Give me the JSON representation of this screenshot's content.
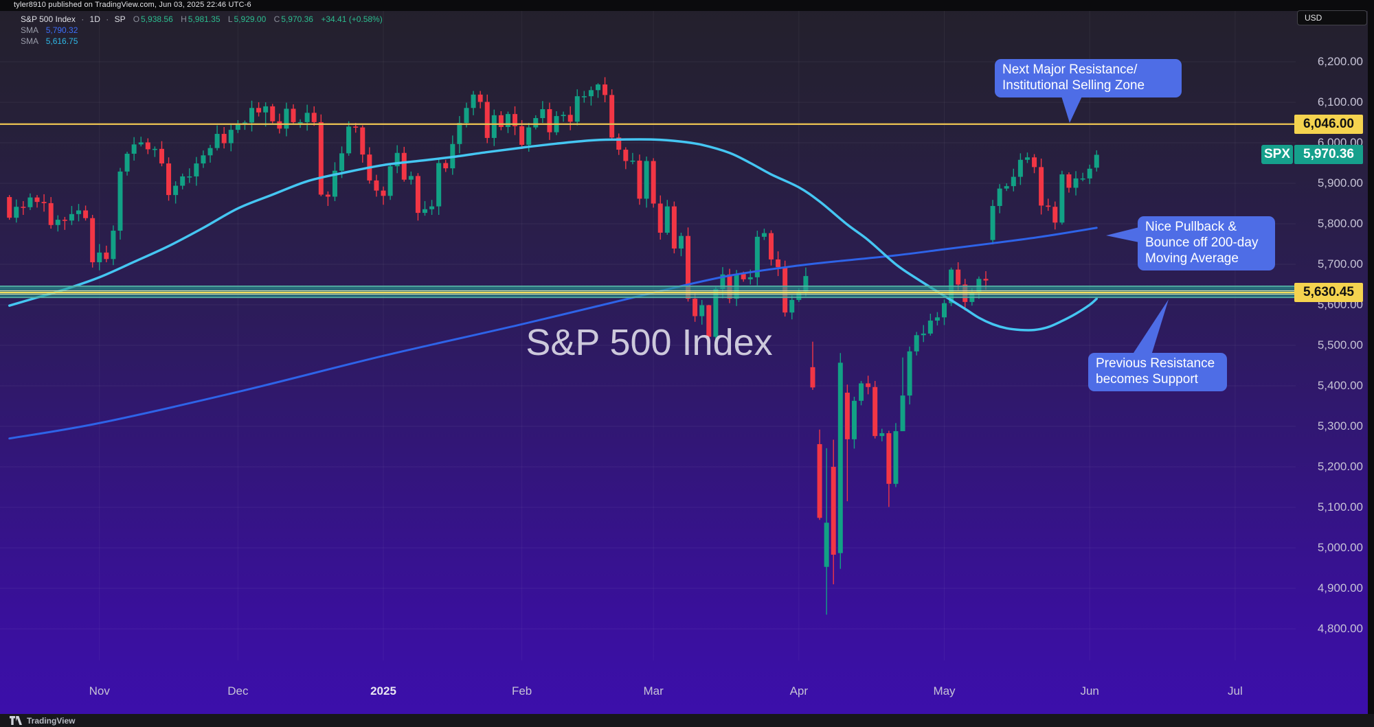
{
  "publish_bar": {
    "text": "tyler8910 published on TradingView.com, Jun 03, 2025 22:46 UTC-6"
  },
  "legend": {
    "symbol": "S&P 500 Index",
    "sep": "·",
    "interval": "1D",
    "exchange": "SP",
    "o_label": "O",
    "o": "5,938.56",
    "h_label": "H",
    "h": "5,981.35",
    "l_label": "L",
    "l": "5,929.00",
    "c_label": "C",
    "c": "5,970.36",
    "change": "+34.41 (+0.58%)",
    "sma1_label": "SMA",
    "sma1_value": "5,790.32",
    "sma2_label": "SMA",
    "sma2_value": "5,616.75"
  },
  "watermark": "S&P 500 Index",
  "currency_button": "USD",
  "footer": {
    "brand": "TradingView"
  },
  "price_chips": {
    "resistance_label": "6,046.00",
    "resistance_price": 6046.0,
    "support_label": "5,630.45",
    "support_price": 5630.45,
    "symbol_flag": "SPX",
    "last_label": "5,970.36",
    "last_price": 5970.36
  },
  "chart_data": {
    "type": "candlestick",
    "title": "S&P 500 Index",
    "interval": "1D",
    "legend_position": "top-left",
    "grid": true,
    "y_axis": {
      "min": 4720,
      "max": 6330,
      "ticks": [
        6200,
        6100,
        6000,
        5900,
        5800,
        5700,
        5600,
        5500,
        5400,
        5300,
        5200,
        5100,
        5000,
        4900,
        4800
      ]
    },
    "x_axis": {
      "ticks": [
        {
          "label": "Nov",
          "i": 13
        },
        {
          "label": "Dec",
          "i": 33
        },
        {
          "label": "2025",
          "i": 54,
          "bold": true
        },
        {
          "label": "Feb",
          "i": 74
        },
        {
          "label": "Mar",
          "i": 93
        },
        {
          "label": "Apr",
          "i": 114
        },
        {
          "label": "May",
          "i": 135
        },
        {
          "label": "Jun",
          "i": 156
        },
        {
          "label": "Jul",
          "i": 177
        }
      ]
    },
    "date_range": {
      "start": "Oct 2024",
      "end": "Jun 03, 2025"
    },
    "last_candle_ohlc": {
      "o": 5938.56,
      "h": 5981.35,
      "l": 5929.0,
      "c": 5970.36,
      "change": 34.41,
      "change_pct": 0.58
    },
    "closes": [
      5815,
      5842,
      5841,
      5865,
      5854,
      5851,
      5797,
      5810,
      5808,
      5824,
      5833,
      5814,
      5705,
      5729,
      5713,
      5783,
      5929,
      5973,
      5996,
      6001,
      5984,
      5985,
      5949,
      5871,
      5894,
      5917,
      5917,
      5949,
      5969,
      5987,
      6022,
      5999,
      6032,
      6047,
      6050,
      6086,
      6075,
      6090,
      6053,
      6035,
      6084,
      6051,
      6051,
      6074,
      6051,
      5872,
      5867,
      5931,
      5974,
      6040,
      6038,
      5971,
      5907,
      5882,
      5869,
      5942,
      5975,
      5909,
      5918,
      5827,
      5836,
      5843,
      5950,
      5937,
      5997,
      6049,
      6086,
      6119,
      6101,
      6012,
      6068,
      6039,
      6071,
      6041,
      5995,
      6038,
      6061,
      6083,
      6026,
      6066,
      6069,
      6052,
      6115,
      6115,
      6130,
      6144,
      6118,
      6013,
      5983,
      5955,
      5956,
      5862,
      5955,
      5850,
      5778,
      5843,
      5739,
      5770,
      5615,
      5572,
      5599,
      5521,
      5639,
      5675,
      5615,
      5676,
      5663,
      5668,
      5768,
      5777,
      5712,
      5693,
      5581,
      5612,
      5633,
      5671,
      5396,
      5074,
      5062,
      4983,
      5457,
      5268,
      5363,
      5406,
      5397,
      5276,
      5283,
      5158,
      5288,
      5376,
      5485,
      5525,
      5529,
      5561,
      5569,
      5604,
      5687,
      5650,
      5607,
      5631,
      5664,
      5660,
      5844,
      5887,
      5893,
      5916,
      5958,
      5964,
      5940,
      5845,
      5842,
      5803,
      5922,
      5889,
      5912,
      5912,
      5936,
      5970.36
    ],
    "open_overrides": {
      "0": 5866,
      "116": 5446,
      "117": 5256,
      "118": 4953,
      "119": 5200,
      "120": 4987,
      "121": 5383,
      "142": 5760,
      "157": 5938.56
    },
    "wick_overrides": {
      "37": [
        6100,
        6040
      ],
      "45": [
        6070,
        5868
      ],
      "68": [
        6128,
        6085
      ],
      "85": [
        6147,
        6111
      ],
      "101": [
        5600,
        5504
      ],
      "116": [
        5509,
        5390
      ],
      "117": [
        5292,
        5069
      ],
      "118": [
        5246,
        4835
      ],
      "119": [
        5267,
        4910
      ],
      "120": [
        5481,
        4948
      ],
      "121": [
        5403,
        5115
      ],
      "127": [
        5289,
        5101
      ],
      "129": [
        5470,
        5323
      ],
      "157": [
        5981.35,
        5929
      ]
    },
    "sma_50": {
      "name": "SMA 50",
      "color": "#45c6f2",
      "last_value": 5616.75,
      "points": [
        [
          0,
          5598
        ],
        [
          4,
          5618
        ],
        [
          8,
          5638
        ],
        [
          13,
          5668
        ],
        [
          18,
          5706
        ],
        [
          23,
          5745
        ],
        [
          28,
          5790
        ],
        [
          33,
          5838
        ],
        [
          38,
          5872
        ],
        [
          43,
          5905
        ],
        [
          48,
          5925
        ],
        [
          54,
          5945
        ],
        [
          59,
          5955
        ],
        [
          64,
          5965
        ],
        [
          69,
          5977
        ],
        [
          74,
          5988
        ],
        [
          79,
          5998
        ],
        [
          84,
          6006
        ],
        [
          88,
          6008
        ],
        [
          93,
          6008
        ],
        [
          97,
          6003
        ],
        [
          100,
          5995
        ],
        [
          104,
          5975
        ],
        [
          107,
          5950
        ],
        [
          110,
          5922
        ],
        [
          114,
          5890
        ],
        [
          117,
          5855
        ],
        [
          121,
          5798
        ],
        [
          124,
          5760
        ],
        [
          128,
          5700
        ],
        [
          131,
          5665
        ],
        [
          135,
          5622
        ],
        [
          138,
          5590
        ],
        [
          140,
          5568
        ],
        [
          142,
          5552
        ],
        [
          144,
          5542
        ],
        [
          146,
          5538
        ],
        [
          148,
          5538
        ],
        [
          150,
          5545
        ],
        [
          152,
          5560
        ],
        [
          154,
          5578
        ],
        [
          156,
          5600
        ],
        [
          157,
          5615
        ]
      ]
    },
    "sma_200": {
      "name": "SMA 200",
      "color": "#2e63e8",
      "last_value": 5790.32,
      "points": [
        [
          0,
          5270
        ],
        [
          13,
          5308
        ],
        [
          33,
          5385
        ],
        [
          54,
          5474
        ],
        [
          74,
          5552
        ],
        [
          93,
          5630
        ],
        [
          104,
          5672
        ],
        [
          114,
          5697
        ],
        [
          121,
          5710
        ],
        [
          128,
          5722
        ],
        [
          135,
          5737
        ],
        [
          142,
          5752
        ],
        [
          149,
          5768
        ],
        [
          157,
          5790
        ]
      ]
    },
    "levels": {
      "resistance_line": {
        "price": 6046.0,
        "color": "#e5be51"
      },
      "support_zone": {
        "top_price": 5646,
        "bottom_price": 5618,
        "center_price": 5630.45,
        "fill": "rgba(42,155,143,0.62)",
        "edge": "#57b7a8",
        "center_color": "#f5e05e"
      }
    },
    "colors": {
      "up": "#12a185",
      "down": "#f23645"
    },
    "annotations": [
      {
        "text": "Next Major Resistance/ Institutional Selling Zone",
        "points_to": "resistance_line"
      },
      {
        "text": "Nice Pullback & Bounce off 200-day Moving Average",
        "points_to": "sma_200"
      },
      {
        "text": "Previous Resistance becomes Support",
        "points_to": "support_zone"
      }
    ]
  }
}
